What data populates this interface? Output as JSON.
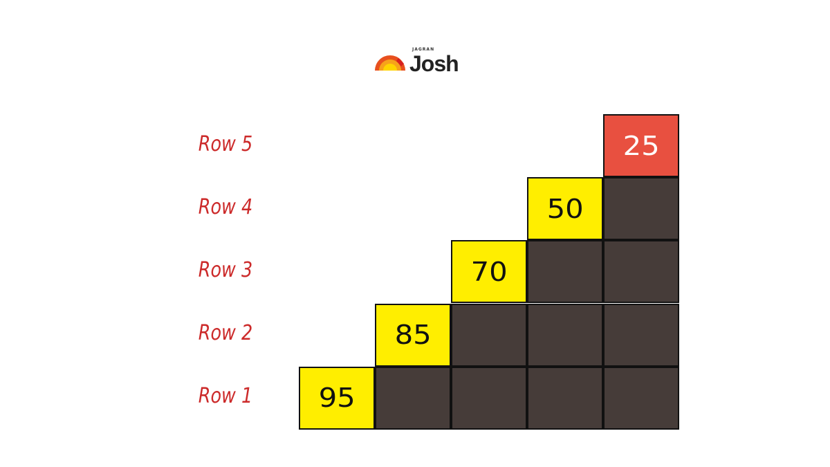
{
  "logo": {
    "top_text": "JAGRAN",
    "word": "Josh"
  },
  "rows": [
    {
      "label": "Row 1",
      "value": "95"
    },
    {
      "label": "Row 2",
      "value": "85"
    },
    {
      "label": "Row 3",
      "value": "70"
    },
    {
      "label": "Row 4",
      "value": "50"
    },
    {
      "label": "Row 5",
      "value": "25"
    }
  ],
  "colors": {
    "label": "#cc2a2a",
    "highlight": "#ffee00",
    "top": "#e85040",
    "fill": "#463c39",
    "top_text": "#ffffff"
  }
}
